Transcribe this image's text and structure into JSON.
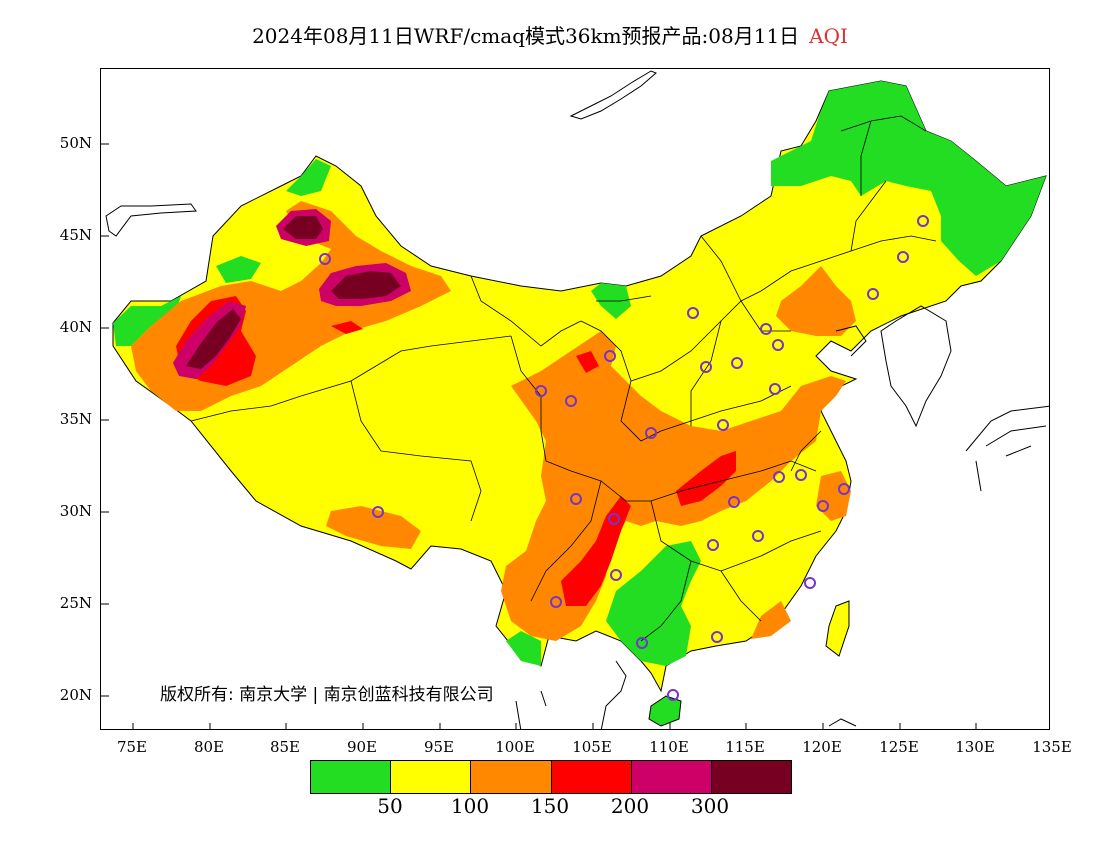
{
  "title": {
    "main": "2024年08月11日WRF/cmaq模式36km预报产品:08月11日",
    "variable": "AQI"
  },
  "axes": {
    "lat_labels": [
      "50N",
      "45N",
      "40N",
      "35N",
      "30N",
      "25N",
      "20N"
    ],
    "lon_labels": [
      "75E",
      "80E",
      "85E",
      "90E",
      "95E",
      "100E",
      "105E",
      "110E",
      "115E",
      "120E",
      "125E",
      "130E",
      "135E"
    ]
  },
  "copyright": "版权所有: 南京大学 | 南京创蓝科技有限公司",
  "legend": {
    "colors": [
      "#22dd22",
      "#ffff00",
      "#ff8800",
      "#ff0000",
      "#cc0066",
      "#770022"
    ],
    "labels": [
      "50",
      "100",
      "150",
      "200",
      "300"
    ]
  },
  "colors": {
    "good": "#22dd22",
    "moderate": "#ffff00",
    "sensitive": "#ff8800",
    "unhealthy": "#ff0000",
    "very_unhealthy": "#cc0066",
    "hazardous": "#770022",
    "station_marker": "#7733cc"
  }
}
